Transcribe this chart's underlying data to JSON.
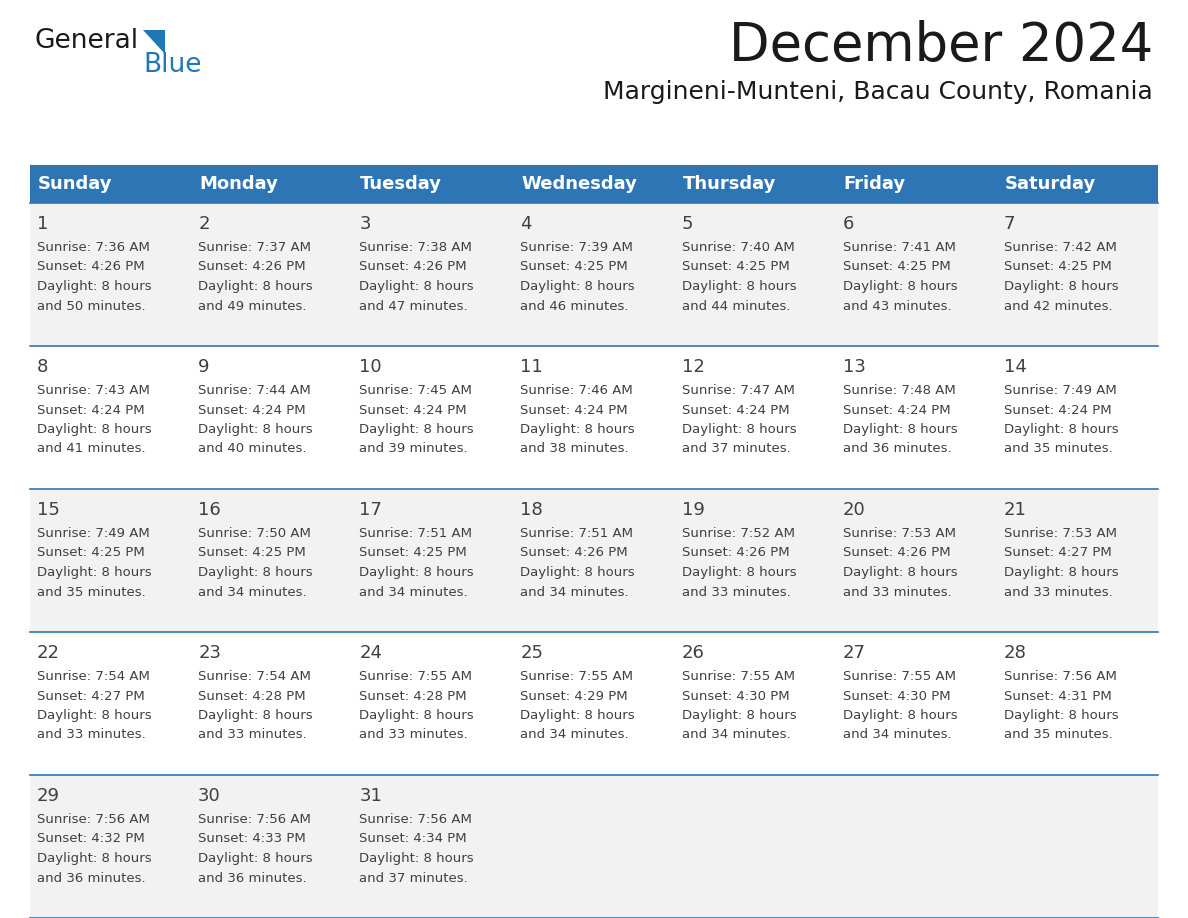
{
  "title": "December 2024",
  "subtitle": "Margineni-Munteni, Bacau County, Romania",
  "header_color": "#2E75B6",
  "header_text_color": "#FFFFFF",
  "day_names": [
    "Sunday",
    "Monday",
    "Tuesday",
    "Wednesday",
    "Thursday",
    "Friday",
    "Saturday"
  ],
  "bg_color": "#FFFFFF",
  "cell_bg_even": "#F2F2F2",
  "cell_bg_odd": "#FFFFFF",
  "border_color": "#2E75B6",
  "text_color": "#404040",
  "days": [
    {
      "day": 1,
      "col": 0,
      "row": 0,
      "sunrise": "7:36 AM",
      "sunset": "4:26 PM",
      "daylight": "8 hours and 50 minutes."
    },
    {
      "day": 2,
      "col": 1,
      "row": 0,
      "sunrise": "7:37 AM",
      "sunset": "4:26 PM",
      "daylight": "8 hours and 49 minutes."
    },
    {
      "day": 3,
      "col": 2,
      "row": 0,
      "sunrise": "7:38 AM",
      "sunset": "4:26 PM",
      "daylight": "8 hours and 47 minutes."
    },
    {
      "day": 4,
      "col": 3,
      "row": 0,
      "sunrise": "7:39 AM",
      "sunset": "4:25 PM",
      "daylight": "8 hours and 46 minutes."
    },
    {
      "day": 5,
      "col": 4,
      "row": 0,
      "sunrise": "7:40 AM",
      "sunset": "4:25 PM",
      "daylight": "8 hours and 44 minutes."
    },
    {
      "day": 6,
      "col": 5,
      "row": 0,
      "sunrise": "7:41 AM",
      "sunset": "4:25 PM",
      "daylight": "8 hours and 43 minutes."
    },
    {
      "day": 7,
      "col": 6,
      "row": 0,
      "sunrise": "7:42 AM",
      "sunset": "4:25 PM",
      "daylight": "8 hours and 42 minutes."
    },
    {
      "day": 8,
      "col": 0,
      "row": 1,
      "sunrise": "7:43 AM",
      "sunset": "4:24 PM",
      "daylight": "8 hours and 41 minutes."
    },
    {
      "day": 9,
      "col": 1,
      "row": 1,
      "sunrise": "7:44 AM",
      "sunset": "4:24 PM",
      "daylight": "8 hours and 40 minutes."
    },
    {
      "day": 10,
      "col": 2,
      "row": 1,
      "sunrise": "7:45 AM",
      "sunset": "4:24 PM",
      "daylight": "8 hours and 39 minutes."
    },
    {
      "day": 11,
      "col": 3,
      "row": 1,
      "sunrise": "7:46 AM",
      "sunset": "4:24 PM",
      "daylight": "8 hours and 38 minutes."
    },
    {
      "day": 12,
      "col": 4,
      "row": 1,
      "sunrise": "7:47 AM",
      "sunset": "4:24 PM",
      "daylight": "8 hours and 37 minutes."
    },
    {
      "day": 13,
      "col": 5,
      "row": 1,
      "sunrise": "7:48 AM",
      "sunset": "4:24 PM",
      "daylight": "8 hours and 36 minutes."
    },
    {
      "day": 14,
      "col": 6,
      "row": 1,
      "sunrise": "7:49 AM",
      "sunset": "4:24 PM",
      "daylight": "8 hours and 35 minutes."
    },
    {
      "day": 15,
      "col": 0,
      "row": 2,
      "sunrise": "7:49 AM",
      "sunset": "4:25 PM",
      "daylight": "8 hours and 35 minutes."
    },
    {
      "day": 16,
      "col": 1,
      "row": 2,
      "sunrise": "7:50 AM",
      "sunset": "4:25 PM",
      "daylight": "8 hours and 34 minutes."
    },
    {
      "day": 17,
      "col": 2,
      "row": 2,
      "sunrise": "7:51 AM",
      "sunset": "4:25 PM",
      "daylight": "8 hours and 34 minutes."
    },
    {
      "day": 18,
      "col": 3,
      "row": 2,
      "sunrise": "7:51 AM",
      "sunset": "4:26 PM",
      "daylight": "8 hours and 34 minutes."
    },
    {
      "day": 19,
      "col": 4,
      "row": 2,
      "sunrise": "7:52 AM",
      "sunset": "4:26 PM",
      "daylight": "8 hours and 33 minutes."
    },
    {
      "day": 20,
      "col": 5,
      "row": 2,
      "sunrise": "7:53 AM",
      "sunset": "4:26 PM",
      "daylight": "8 hours and 33 minutes."
    },
    {
      "day": 21,
      "col": 6,
      "row": 2,
      "sunrise": "7:53 AM",
      "sunset": "4:27 PM",
      "daylight": "8 hours and 33 minutes."
    },
    {
      "day": 22,
      "col": 0,
      "row": 3,
      "sunrise": "7:54 AM",
      "sunset": "4:27 PM",
      "daylight": "8 hours and 33 minutes."
    },
    {
      "day": 23,
      "col": 1,
      "row": 3,
      "sunrise": "7:54 AM",
      "sunset": "4:28 PM",
      "daylight": "8 hours and 33 minutes."
    },
    {
      "day": 24,
      "col": 2,
      "row": 3,
      "sunrise": "7:55 AM",
      "sunset": "4:28 PM",
      "daylight": "8 hours and 33 minutes."
    },
    {
      "day": 25,
      "col": 3,
      "row": 3,
      "sunrise": "7:55 AM",
      "sunset": "4:29 PM",
      "daylight": "8 hours and 34 minutes."
    },
    {
      "day": 26,
      "col": 4,
      "row": 3,
      "sunrise": "7:55 AM",
      "sunset": "4:30 PM",
      "daylight": "8 hours and 34 minutes."
    },
    {
      "day": 27,
      "col": 5,
      "row": 3,
      "sunrise": "7:55 AM",
      "sunset": "4:30 PM",
      "daylight": "8 hours and 34 minutes."
    },
    {
      "day": 28,
      "col": 6,
      "row": 3,
      "sunrise": "7:56 AM",
      "sunset": "4:31 PM",
      "daylight": "8 hours and 35 minutes."
    },
    {
      "day": 29,
      "col": 0,
      "row": 4,
      "sunrise": "7:56 AM",
      "sunset": "4:32 PM",
      "daylight": "8 hours and 36 minutes."
    },
    {
      "day": 30,
      "col": 1,
      "row": 4,
      "sunrise": "7:56 AM",
      "sunset": "4:33 PM",
      "daylight": "8 hours and 36 minutes."
    },
    {
      "day": 31,
      "col": 2,
      "row": 4,
      "sunrise": "7:56 AM",
      "sunset": "4:34 PM",
      "daylight": "8 hours and 37 minutes."
    }
  ],
  "num_rows": 5,
  "num_cols": 7,
  "logo_general_color": "#1a1a1a",
  "logo_blue_color": "#2077B6"
}
